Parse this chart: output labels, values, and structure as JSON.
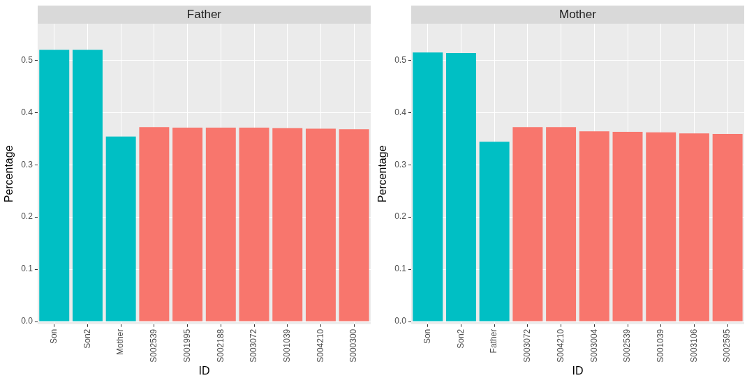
{
  "chart_data": [
    {
      "type": "bar",
      "title": "Father",
      "xlabel": "ID",
      "ylabel": "Percentage",
      "categories": [
        "Son",
        "Son2",
        "Mother",
        "S002539",
        "S001995",
        "S002188",
        "S003072",
        "S001039",
        "S004210",
        "S000300"
      ],
      "values": [
        0.52,
        0.52,
        0.354,
        0.372,
        0.371,
        0.371,
        0.371,
        0.37,
        0.369,
        0.368
      ],
      "colors": [
        "#00bfc4",
        "#00bfc4",
        "#00bfc4",
        "#f8766d",
        "#f8766d",
        "#f8766d",
        "#f8766d",
        "#f8766d",
        "#f8766d",
        "#f8766d"
      ],
      "ylim": [
        -0.005,
        0.57
      ],
      "yticks": [
        {
          "value": 0,
          "label": "0.0"
        },
        0.1,
        0.2,
        0.3,
        0.4,
        0.5
      ],
      "grid": true,
      "legend": false
    },
    {
      "type": "bar",
      "title": "Mother",
      "xlabel": "ID",
      "ylabel": "Percentage",
      "categories": [
        "Son",
        "Son2",
        "Father",
        "S003072",
        "S004210",
        "S003004",
        "S002539",
        "S001039",
        "S003106",
        "S002595"
      ],
      "values": [
        0.515,
        0.514,
        0.344,
        0.372,
        0.372,
        0.364,
        0.363,
        0.362,
        0.36,
        0.359
      ],
      "colors": [
        "#00bfc4",
        "#00bfc4",
        "#00bfc4",
        "#f8766d",
        "#f8766d",
        "#f8766d",
        "#f8766d",
        "#f8766d",
        "#f8766d",
        "#f8766d"
      ],
      "ylim": [
        -0.005,
        0.57
      ],
      "yticks": [
        {
          "value": 0,
          "label": "0.0"
        },
        0.1,
        0.2,
        0.3,
        0.4,
        0.5
      ],
      "grid": true,
      "legend": false
    }
  ]
}
